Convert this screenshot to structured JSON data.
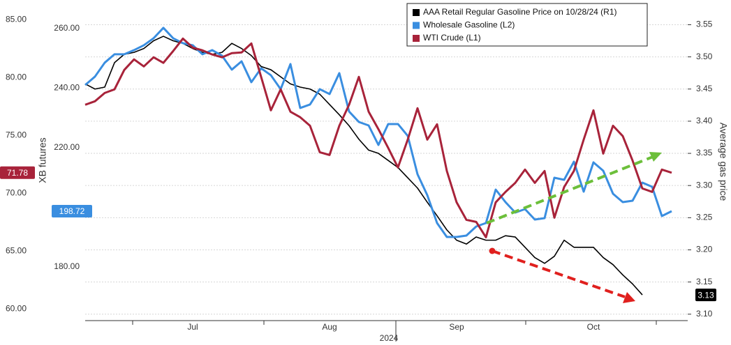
{
  "chart_data": {
    "type": "line",
    "x_label": "2024",
    "y_label": "XB futures",
    "y2_label": "Average gas price",
    "categories": [
      null,
      null,
      null,
      null,
      null,
      null,
      null,
      null,
      null,
      null,
      null,
      "Jul",
      null,
      null,
      null,
      null,
      null,
      null,
      null,
      null,
      null,
      null,
      null,
      null,
      null,
      "Aug",
      null,
      null,
      null,
      null,
      null,
      null,
      null,
      null,
      null,
      null,
      null,
      null,
      "Sep",
      null,
      null,
      null,
      null,
      null,
      null,
      null,
      null,
      null,
      null,
      null,
      null,
      null,
      "Oct",
      null,
      null,
      null,
      null,
      null,
      null,
      null,
      null
    ],
    "ylim": [
      59,
      86.4
    ],
    "yticks": [
      {
        "value": 60,
        "label": "60.00"
      },
      {
        "value": 65,
        "label": "65.00"
      },
      {
        "value": 70,
        "label": "70.00"
      },
      {
        "value": 75,
        "label": "75.00"
      },
      {
        "value": 80,
        "label": "80.00"
      },
      {
        "value": 85,
        "label": "85.00"
      }
    ],
    "y3lim": [
      162,
      268.4
    ],
    "y3ticks": [
      {
        "value": 180,
        "label": "180.00"
      },
      {
        "value": 220,
        "label": "220.00"
      },
      {
        "value": 240,
        "label": "240.00"
      },
      {
        "value": 260,
        "label": "260.00"
      }
    ],
    "y2lim": [
      3.09,
      3.583
    ],
    "y2ticks": [
      {
        "value": 3.1,
        "label": "3.10"
      },
      3.15,
      {
        "value": 3.2,
        "label": "3.20"
      },
      3.25,
      {
        "value": 3.3,
        "label": "3.30"
      },
      3.35,
      {
        "value": 3.4,
        "label": "3.40"
      },
      3.45,
      {
        "value": 3.5,
        "label": "3.50"
      },
      3.55
    ],
    "grid": true,
    "legend": "top-right",
    "series": [
      {
        "name": "AAA Retail Regular Gasoline Price on 10/28/24 (R1)",
        "color": "#000000",
        "axis": "y2",
        "values": [
          3.458,
          3.45,
          3.453,
          3.491,
          3.504,
          3.507,
          3.513,
          3.525,
          3.532,
          3.525,
          3.521,
          3.513,
          3.507,
          3.504,
          3.507,
          3.521,
          3.513,
          3.502,
          3.485,
          3.48,
          3.469,
          3.458,
          3.453,
          3.45,
          3.442,
          3.426,
          3.41,
          3.393,
          3.372,
          3.355,
          3.35,
          3.339,
          3.328,
          3.312,
          3.296,
          3.274,
          3.253,
          3.231,
          3.215,
          3.209,
          3.22,
          3.215,
          3.215,
          3.222,
          3.22,
          3.204,
          3.188,
          3.179,
          3.19,
          3.215,
          3.204,
          3.204,
          3.204,
          3.188,
          3.177,
          3.161,
          3.147,
          3.13,
          null,
          null,
          null
        ]
      },
      {
        "name": "Wholesale Gasoline (L2)",
        "color": "#3a8ee0",
        "axis": "y3",
        "values": [
          241.05,
          243.86,
          248.54,
          251.35,
          251.35,
          252.75,
          254.39,
          256.73,
          260.23,
          256.73,
          255.09,
          254.39,
          251.35,
          252.75,
          250.88,
          246.2,
          249.0,
          241.99,
          246.67,
          244.33,
          239.65,
          248.07,
          233.33,
          234.5,
          239.65,
          238.01,
          245.03,
          232.16,
          228.65,
          227.48,
          220.93,
          227.95,
          227.95,
          223.98,
          211.11,
          204.09,
          194.74,
          190.06,
          190.06,
          190.53,
          193.57,
          194.74,
          205.96,
          201.75,
          198.25,
          199.42,
          195.91,
          196.37,
          209.94,
          209.24,
          215.32,
          205.26,
          215.09,
          212.28,
          204.56,
          201.75,
          202.22,
          208.3,
          206.9,
          197.08,
          198.72
        ]
      },
      {
        "name": "WTI Crude (L1)",
        "color": "#a8233a",
        "axis": "y",
        "values": [
          77.65,
          77.95,
          78.67,
          78.98,
          80.66,
          81.57,
          80.96,
          81.75,
          81.27,
          82.29,
          83.37,
          82.59,
          82.35,
          81.99,
          81.75,
          82.11,
          82.17,
          82.95,
          80.06,
          77.17,
          78.98,
          77.05,
          76.57,
          75.84,
          73.55,
          73.31,
          75.84,
          77.65,
          80.06,
          77.05,
          75.54,
          73.92,
          72.23,
          74.64,
          77.35,
          74.64,
          75.96,
          71.93,
          69.22,
          67.71,
          67.53,
          66.2,
          69.22,
          70.12,
          70.9,
          72.05,
          70.9,
          71.93,
          67.89,
          70.54,
          71.93,
          74.64,
          77.17,
          73.43,
          75.84,
          74.94,
          72.83,
          70.42,
          70.12,
          72.05,
          71.78
        ]
      }
    ]
  }
}
